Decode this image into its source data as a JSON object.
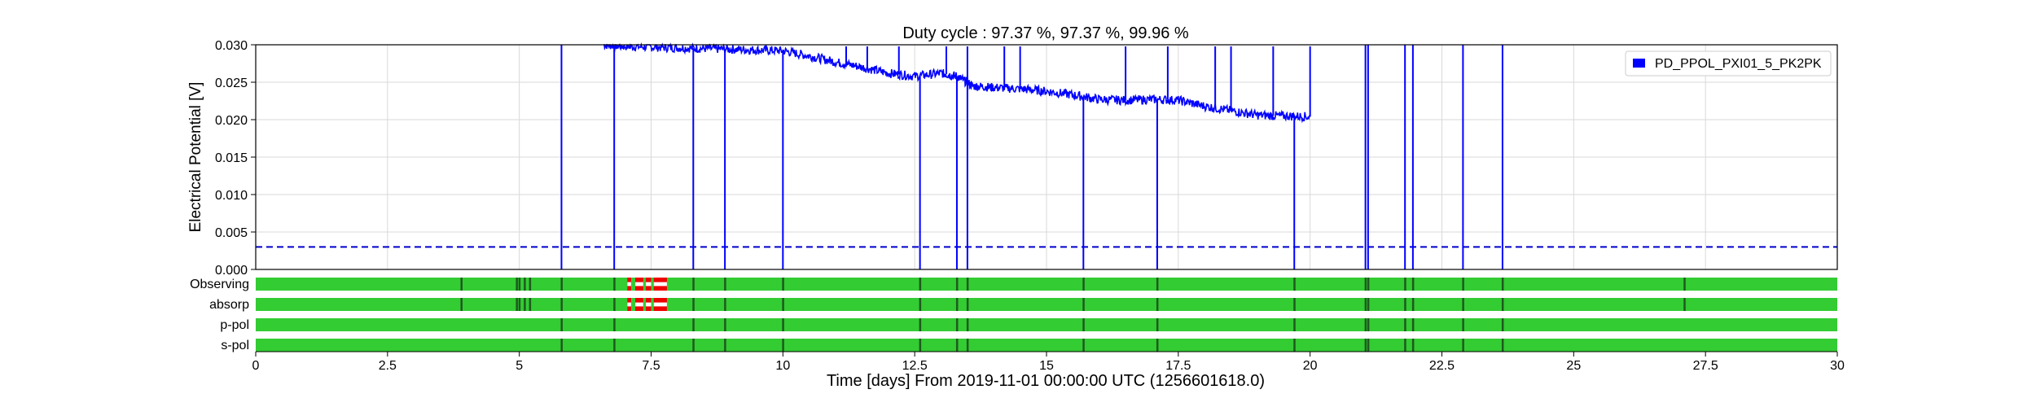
{
  "title": "Duty cycle : 97.37 %, 97.37 %, 99.96 %",
  "xlabel": "Time [days] From 2019-11-01 00:00:00 UTC (1256601618.0)",
  "ylabel": "Electrical Potential [V]",
  "colors": {
    "series": "#0000ff",
    "threshold": "#0000cc",
    "state_on": "#33cc33",
    "state_gap": "#1e5a1e",
    "state_bad": "#ee0000",
    "grid": "#d9d9d9",
    "axis": "#000000"
  },
  "chart_data": {
    "type": "line",
    "title": "Duty cycle : 97.37 %, 97.37 %, 99.96 %",
    "xlabel": "Time [days] From 2019-11-01 00:00:00 UTC (1256601618.0)",
    "ylabel": "Electrical Potential [V]",
    "xlim": [
      0,
      30
    ],
    "ylim": [
      0,
      0.03
    ],
    "x_ticks": [
      0,
      2.5,
      5,
      7.5,
      10,
      12.5,
      15,
      17.5,
      20,
      22.5,
      25,
      27.5,
      30
    ],
    "x_tick_labels": [
      "0",
      "2.5",
      "5",
      "7.5",
      "10",
      "12.5",
      "15",
      "17.5",
      "20",
      "22.5",
      "25",
      "27.5",
      "30"
    ],
    "y_ticks": [
      0,
      0.005,
      0.01,
      0.015,
      0.02,
      0.025,
      0.03
    ],
    "y_tick_labels": [
      "0.000",
      "0.005",
      "0.010",
      "0.015",
      "0.020",
      "0.025",
      "0.030"
    ],
    "grid": true,
    "legend_position": "top-right",
    "series": [
      {
        "name": "PD_PPOL_PXI01_5_PK2PK",
        "style": "solid",
        "x": [
          6.6,
          7.0,
          7.5,
          8.0,
          8.5,
          9.0,
          9.5,
          10.0,
          10.5,
          11.0,
          11.5,
          12.0,
          12.5,
          13.0,
          13.3,
          13.6,
          14.0,
          14.5,
          15.0,
          15.5,
          16.0,
          16.5,
          17.0,
          17.5,
          18.0,
          18.5,
          19.0,
          19.5,
          20.0
        ],
        "values": [
          0.03,
          0.0298,
          0.0297,
          0.0296,
          0.0295,
          0.0294,
          0.0293,
          0.0292,
          0.0285,
          0.0277,
          0.027,
          0.0262,
          0.0258,
          0.0262,
          0.0258,
          0.0245,
          0.0243,
          0.0241,
          0.0238,
          0.0233,
          0.0227,
          0.0226,
          0.0227,
          0.0226,
          0.0218,
          0.0212,
          0.0206,
          0.0205,
          0.0204
        ],
        "drops_to_zero_at": [
          5.8,
          6.8,
          8.3,
          8.9,
          10.0,
          12.6,
          13.3,
          13.5,
          15.7,
          17.1,
          19.7
        ],
        "spikes_to_top_at": [
          11.2,
          11.6,
          12.2,
          13.1,
          13.5,
          14.2,
          14.5,
          16.5,
          17.3,
          18.2,
          18.5,
          19.3,
          20.0
        ],
        "vertical_lines_full_at": [
          21.05,
          21.1,
          21.8,
          21.95,
          22.9,
          23.65
        ]
      },
      {
        "style": "dashed",
        "x": [
          0,
          30
        ],
        "values": [
          0.003,
          0.003
        ]
      }
    ],
    "state_rows": [
      {
        "label": "Observing",
        "gaps": [
          3.9,
          4.95,
          5.0,
          5.1,
          5.2,
          5.8,
          6.8,
          8.3,
          8.9,
          10.0,
          12.6,
          13.3,
          13.5,
          15.7,
          17.1,
          19.7,
          21.05,
          21.1,
          21.8,
          21.95,
          22.9,
          23.65,
          27.1
        ],
        "bad_segments": [
          [
            7.05,
            7.12
          ],
          [
            7.2,
            7.35
          ],
          [
            7.4,
            7.5
          ],
          [
            7.55,
            7.8
          ]
        ]
      },
      {
        "label": "absorp",
        "gaps": [
          3.9,
          4.95,
          5.0,
          5.1,
          5.2,
          5.8,
          6.8,
          8.3,
          8.9,
          10.0,
          12.6,
          13.3,
          13.5,
          15.7,
          17.1,
          19.7,
          21.05,
          21.1,
          21.8,
          21.95,
          22.9,
          23.65,
          27.1
        ],
        "bad_segments": [
          [
            7.05,
            7.12
          ],
          [
            7.2,
            7.35
          ],
          [
            7.4,
            7.5
          ],
          [
            7.55,
            7.8
          ]
        ]
      },
      {
        "label": "p-pol",
        "gaps": [
          5.8,
          6.8,
          8.3,
          8.9,
          10.0,
          12.6,
          13.3,
          13.5,
          15.7,
          17.1,
          19.7,
          21.05,
          21.1,
          21.8,
          21.95,
          22.9,
          23.65
        ],
        "bad_segments": []
      },
      {
        "label": "s-pol",
        "gaps": [
          5.8,
          6.8,
          8.3,
          8.9,
          10.0,
          12.6,
          13.3,
          13.5,
          15.7,
          17.1,
          19.7,
          21.05,
          21.1,
          21.8,
          21.95,
          22.9,
          23.65
        ],
        "bad_segments": []
      }
    ]
  }
}
